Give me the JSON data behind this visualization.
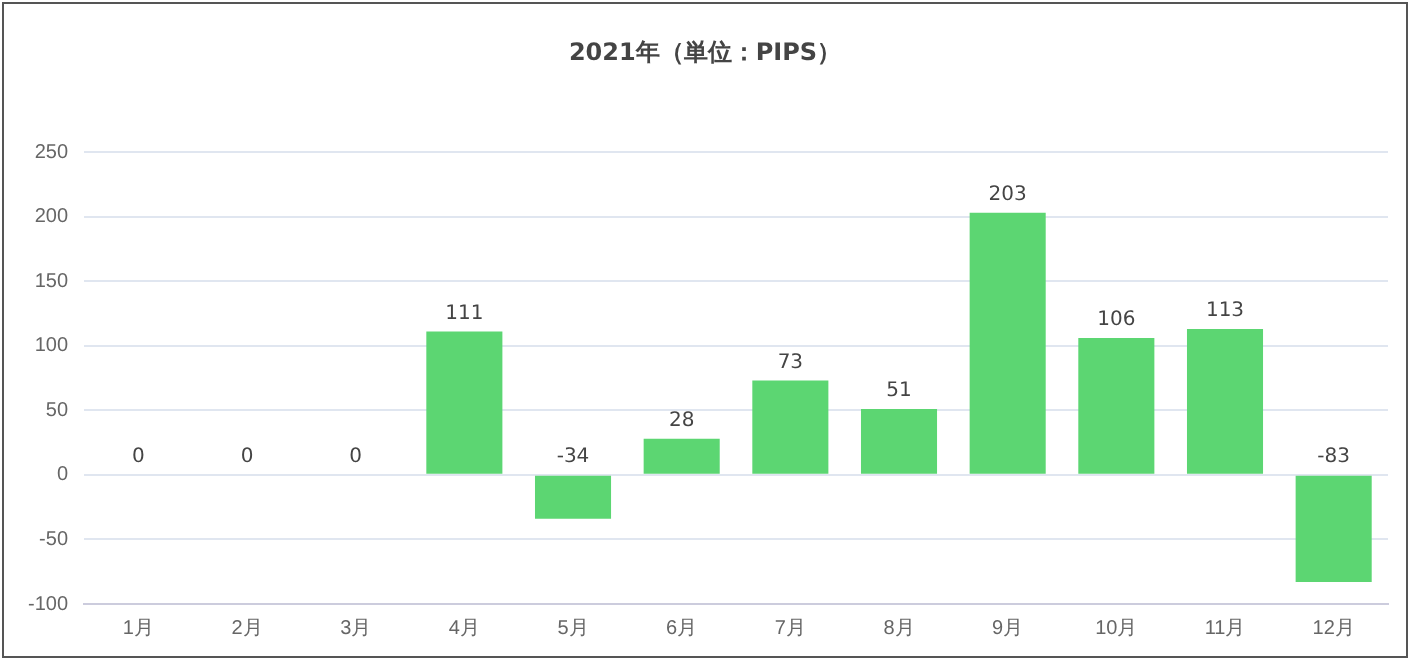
{
  "chart_data": {
    "type": "bar",
    "title": "2021年（単位：PIPS）",
    "categories": [
      "1月",
      "2月",
      "3月",
      "4月",
      "5月",
      "6月",
      "7月",
      "8月",
      "9月",
      "10月",
      "11月",
      "12月"
    ],
    "values": [
      0,
      0,
      0,
      111,
      -34,
      28,
      73,
      51,
      203,
      106,
      113,
      -83
    ],
    "color": "#5cd672",
    "ylim": [
      -100,
      250
    ],
    "yticks": [
      -100,
      -50,
      0,
      50,
      100,
      150,
      200,
      250
    ],
    "grid": "y",
    "data_labels": true
  }
}
